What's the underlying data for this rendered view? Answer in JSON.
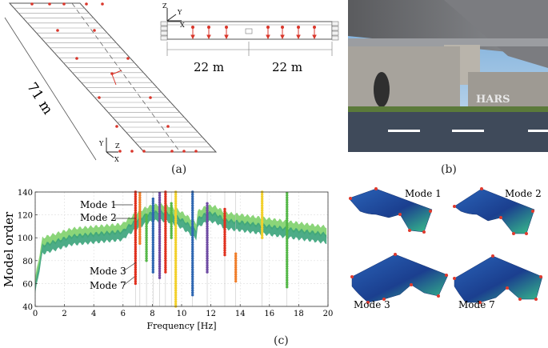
{
  "panel_a": {
    "caption": "(a)",
    "length_label": "71 m",
    "span_left": "22 m",
    "span_right": "22 m",
    "axis_z": "Z",
    "axis_y": "Y",
    "axis_x": "X"
  },
  "panel_b": {
    "caption": "(b)",
    "graffiti_text": "HARS"
  },
  "panel_c": {
    "caption": "(c)",
    "chart_labels": [
      "Mode 1",
      "Mode 2",
      "Mode 3",
      "Mode 7"
    ],
    "mode_shapes": [
      "Mode 1",
      "Mode 2",
      "Mode 3",
      "Mode 7"
    ]
  },
  "chart_data": {
    "type": "scatter",
    "xlabel": "Frequency [Hz]",
    "ylabel": "Model order",
    "xlim": [
      0,
      20
    ],
    "ylim": [
      40,
      140
    ],
    "xticks": [
      0,
      2,
      4,
      6,
      8,
      10,
      12,
      14,
      16,
      18,
      20
    ],
    "yticks": [
      40,
      60,
      80,
      100,
      120,
      140
    ],
    "stable_pole_columns": [
      {
        "f": 6.85,
        "y_from": 60,
        "y_to": 140,
        "color": "#e0301e"
      },
      {
        "f": 7.15,
        "y_from": 95,
        "y_to": 140,
        "color": "#f07d2a"
      },
      {
        "f": 7.6,
        "y_from": 80,
        "y_to": 120,
        "color": "#55b848"
      },
      {
        "f": 8.05,
        "y_from": 70,
        "y_to": 135,
        "color": "#2f67b2"
      },
      {
        "f": 8.5,
        "y_from": 65,
        "y_to": 140,
        "color": "#6e4aa3"
      },
      {
        "f": 8.9,
        "y_from": 70,
        "y_to": 140,
        "color": "#e0301e"
      },
      {
        "f": 9.3,
        "y_from": 100,
        "y_to": 130,
        "color": "#55b848"
      },
      {
        "f": 9.6,
        "y_from": 40,
        "y_to": 140,
        "color": "#f2d02b"
      },
      {
        "f": 10.75,
        "y_from": 50,
        "y_to": 140,
        "color": "#2f67b2"
      },
      {
        "f": 11.75,
        "y_from": 70,
        "y_to": 130,
        "color": "#6e4aa3"
      },
      {
        "f": 12.95,
        "y_from": 85,
        "y_to": 125,
        "color": "#e0301e"
      },
      {
        "f": 13.7,
        "y_from": 62,
        "y_to": 87,
        "color": "#f07d2a"
      },
      {
        "f": 15.5,
        "y_from": 100,
        "y_to": 140,
        "color": "#f2d02b"
      },
      {
        "f": 17.2,
        "y_from": 57,
        "y_to": 140,
        "color": "#55b848"
      }
    ]
  }
}
